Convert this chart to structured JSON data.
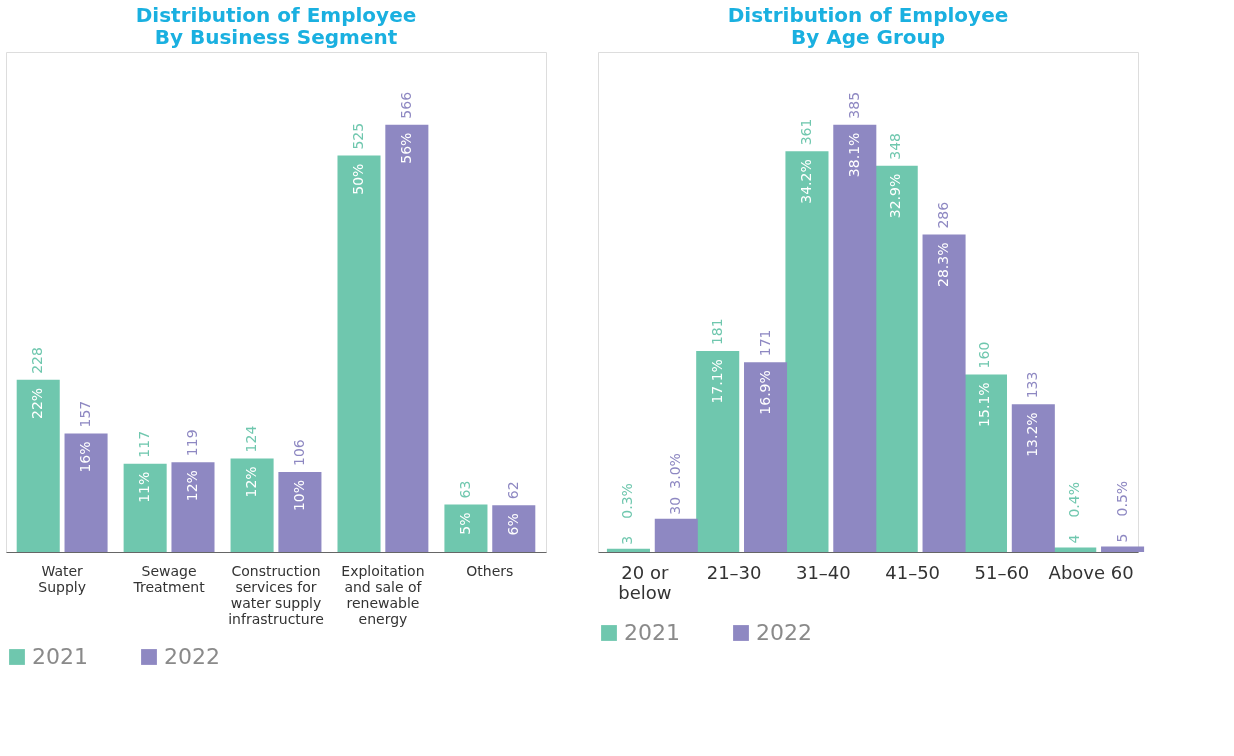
{
  "chart_data": [
    {
      "type": "bar",
      "title": "Distribution of Employee\nBy Business Segment",
      "categories": [
        "Water\nSupply",
        "Sewage\nTreatment",
        "Construction\nservices for\nwater supply\ninfrastructure",
        "Exploitation\nand sale of\nrenewable\nenergy",
        "Others"
      ],
      "series": [
        {
          "name": "2021",
          "color": "#6fc7ae",
          "values": [
            228,
            117,
            124,
            525,
            63
          ]
        },
        {
          "name": "2022",
          "color": "#8e88c2",
          "values": [
            157,
            119,
            106,
            566,
            62
          ]
        }
      ],
      "data_labels": true,
      "legend": "bottom",
      "grid": false,
      "annotations": [
        "22%",
        "11%",
        "12%",
        "50%",
        "5%",
        "16%",
        "12%",
        "10%",
        "56%",
        "6%"
      ]
    },
    {
      "type": "bar",
      "title": "Distribution of Employee\nBy Age Group",
      "categories": [
        "20 or\nbelow",
        "21–30",
        "31–40",
        "41–50",
        "51–60",
        "Above 60"
      ],
      "series": [
        {
          "name": "2021",
          "color": "#6fc7ae",
          "values": [
            3,
            181,
            361,
            348,
            160,
            4
          ]
        },
        {
          "name": "2022",
          "color": "#8e88c2",
          "values": [
            30,
            171,
            385,
            286,
            133,
            5
          ]
        }
      ],
      "data_labels": true,
      "legend": "bottom",
      "grid": false,
      "annotations": [
        "0.3%",
        "17.1%",
        "34.2%",
        "32.9%",
        "15.1%",
        "0.4%",
        "3.0%",
        "16.9%",
        "38.1%",
        "28.3%",
        "13.2%",
        "0.5%"
      ]
    }
  ]
}
